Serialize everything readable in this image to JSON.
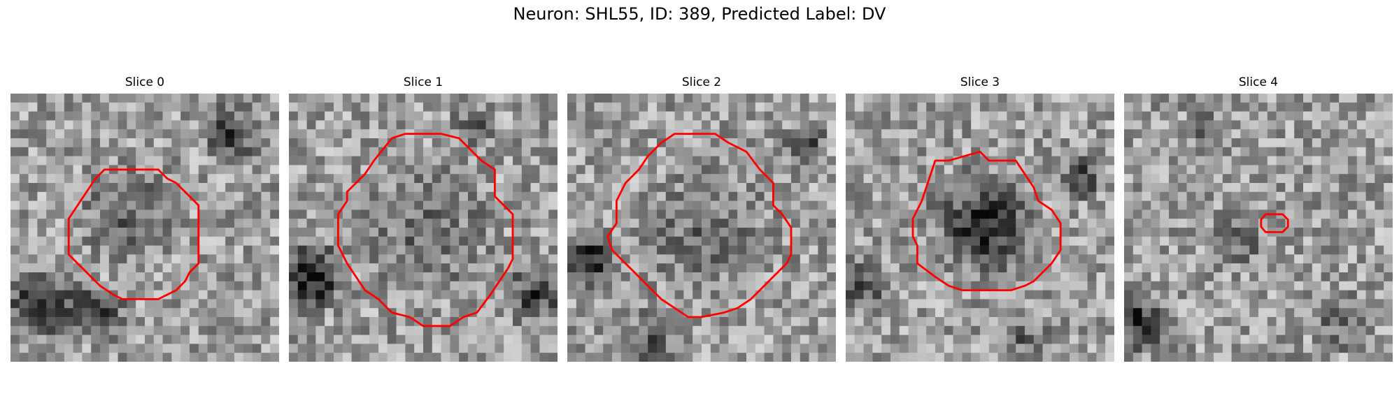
{
  "title": "Neuron: SHL55, ID: 389, Predicted Label: DV",
  "contour_color": "#ff0000",
  "colormap": "gray",
  "panels": [
    {
      "title": "Slice 0",
      "seed": 11,
      "dark_regions": "bottom-left, top-right"
    },
    {
      "title": "Slice 1",
      "seed": 23,
      "dark_regions": "bottom-left, bottom-right"
    },
    {
      "title": "Slice 2",
      "seed": 37,
      "dark_regions": "left, top-right"
    },
    {
      "title": "Slice 3",
      "seed": 51,
      "dark_regions": "center, left"
    },
    {
      "title": "Slice 4",
      "seed": 67,
      "dark_regions": "bottom-left"
    }
  ]
}
